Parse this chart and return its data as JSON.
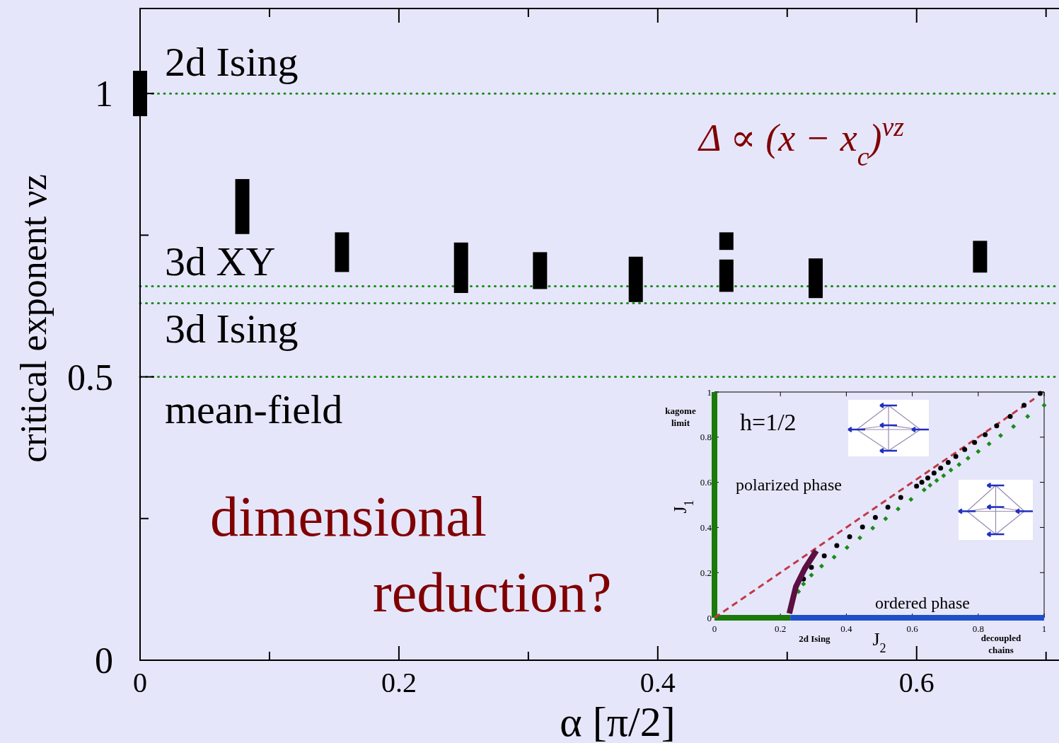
{
  "chart_data": [
    {
      "type": "bar",
      "xlabel": "α [π/2]",
      "ylabel": "critical exponent νz",
      "xlim": [
        0,
        0.71
      ],
      "ylim": [
        0,
        1.15
      ],
      "xticks": [
        0,
        {
          "value": 0.1,
          "label": null
        },
        0.2,
        {
          "value": 0.3,
          "label": null
        },
        0.4,
        {
          "value": 0.5,
          "label": null
        },
        0.6,
        {
          "value": 0.7,
          "label": null
        }
      ],
      "yticks": [
        0,
        {
          "value": 0.25,
          "label": null
        },
        0.5,
        {
          "value": 0.75,
          "label": null
        },
        1
      ],
      "series": [
        {
          "color": "#000000",
          "x": [
            0,
            0.079,
            0.156,
            0.248,
            0.309,
            0.383,
            0.453,
            0.522,
            0.649
          ],
          "base": [
            0.96,
            0.752,
            0.685,
            0.648,
            0.655,
            0.632,
            0.65,
            0.639,
            0.684
          ],
          "values": [
            0.08,
            0.097,
            0.07,
            0.089,
            0.065,
            0.08,
            0.057,
            0.07,
            0.056
          ]
        },
        {
          "color": "#000000",
          "x": [
            0.453
          ],
          "base": [
            0.724
          ],
          "values": [
            0.031
          ]
        }
      ],
      "ref_lines": [
        {
          "axis": "y",
          "value": 1,
          "label": "2d Ising",
          "color": "#1a8c1a",
          "line_style": "dotted"
        },
        {
          "axis": "y",
          "value": 0.66,
          "label": "3d XY",
          "color": "#1a8c1a",
          "line_style": "dotted"
        },
        {
          "axis": "y",
          "value": 0.63,
          "label": "3d Ising",
          "color": "#1a8c1a",
          "line_style": "dotted"
        },
        {
          "axis": "y",
          "value": 0.5,
          "label": "mean-field",
          "color": "#1a8c1a",
          "line_style": "dotted"
        }
      ],
      "annotations": [
        "Δ ∝ (x − x$_{c}$)$^{νz}$",
        "dimensional reduction?"
      ]
    },
    {
      "type": "line",
      "xlabel": "J$_{2}$",
      "ylabel": "J$_{1}$",
      "xlim": [
        0,
        1
      ],
      "ylim": [
        0,
        1
      ],
      "xticks": [
        0,
        0.2,
        0.4,
        0.6,
        0.8,
        1
      ],
      "yticks": [
        0,
        0.2,
        0.4,
        0.6,
        0.8,
        1
      ],
      "series": [
        {
          "color": "#1a7a0a",
          "line_style": "solid",
          "x": [
            0,
            0.23
          ],
          "values": [
            0,
            0
          ]
        },
        {
          "color": "#1f50c8",
          "line_style": "solid",
          "x": [
            0.23,
            1
          ],
          "values": [
            0,
            0
          ]
        },
        {
          "color": "#c03a48",
          "line_style": "dashed",
          "x": [
            0,
            0.97
          ],
          "values": [
            0,
            0.97
          ]
        },
        {
          "type": "scatter",
          "color": "#000000",
          "marker": "circle",
          "x": [
            0.27,
            0.294,
            0.333,
            0.371,
            0.41,
            0.449,
            0.488,
            0.526,
            0.565,
            0.613,
            0.629,
            0.647,
            0.666,
            0.686,
            0.709,
            0.732,
            0.759,
            0.789,
            0.821,
            0.856,
            0.897,
            0.939,
            0.988
          ],
          "values": [
            0.172,
            0.223,
            0.274,
            0.32,
            0.359,
            0.402,
            0.444,
            0.49,
            0.533,
            0.583,
            0.6,
            0.619,
            0.641,
            0.663,
            0.688,
            0.715,
            0.745,
            0.777,
            0.811,
            0.85,
            0.892,
            0.941,
            0.994
          ]
        },
        {
          "type": "scatter",
          "color": "#1a8c1a",
          "marker": "diamond",
          "x": [
            0.255,
            0.27,
            0.294,
            0.325,
            0.363,
            0.402,
            0.441,
            0.48,
            0.519,
            0.557,
            0.596,
            0.636,
            0.654,
            0.674,
            0.695,
            0.717,
            0.742,
            0.769,
            0.8,
            0.833,
            0.868,
            0.907,
            0.95,
            1.0
          ],
          "values": [
            0.116,
            0.15,
            0.189,
            0.229,
            0.269,
            0.311,
            0.354,
            0.397,
            0.439,
            0.482,
            0.524,
            0.567,
            0.587,
            0.608,
            0.629,
            0.654,
            0.679,
            0.707,
            0.737,
            0.77,
            0.807,
            0.847,
            0.892,
            0.941
          ]
        },
        {
          "color": "#5a1040",
          "line_style": "solid",
          "x": [
            0.227,
            0.247,
            0.274,
            0.309
          ],
          "values": [
            0.019,
            0.138,
            0.218,
            0.297
          ]
        }
      ],
      "ref_lines": [
        {
          "axis": "x",
          "value": 0,
          "label": "kagome limit",
          "color": "#1a7a0a",
          "line_style": "solid"
        }
      ],
      "annotations": [
        "h=1/2",
        "polarized phase",
        "ordered phase",
        {
          "text": "2d Ising",
          "x": 0.23,
          "y": 0
        },
        "decoupled chains"
      ]
    }
  ]
}
